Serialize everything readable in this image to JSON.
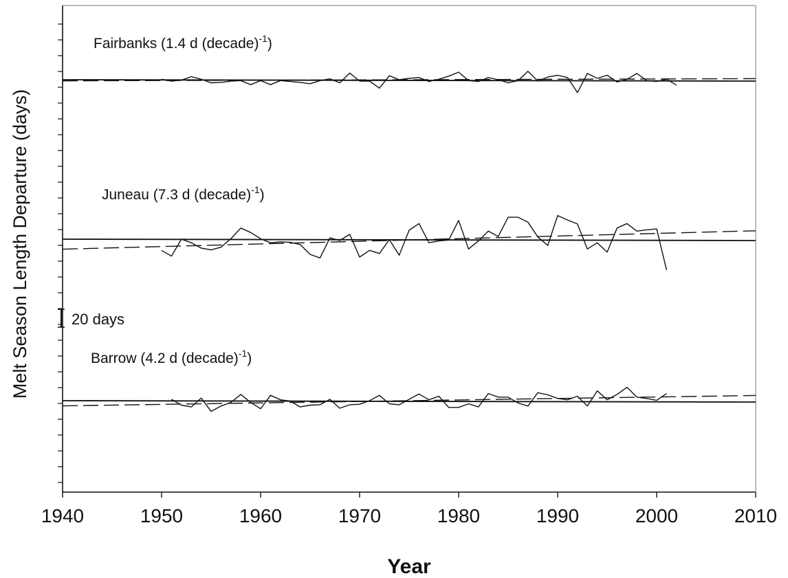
{
  "chart_data": {
    "type": "line",
    "xlabel": "Year",
    "ylabel": "Melt Season Length Departure (days)",
    "xlim": [
      1940,
      2010
    ],
    "x_ticks": [
      "1940",
      "1950",
      "1960",
      "1970",
      "1980",
      "1990",
      "2000",
      "2010"
    ],
    "scale_bar": {
      "label": "20 days",
      "days": 20
    },
    "series": [
      {
        "name": "Fairbanks",
        "label_main": "Fairbanks (1.4 d (decade)",
        "label_exp": "-1",
        "label_close": ")",
        "x_start": 1950,
        "values": [
          0.5,
          -1.5,
          -0.5,
          3.5,
          0.5,
          -3.5,
          -3,
          -1.5,
          -1,
          -5.5,
          -1,
          -5.5,
          -1,
          -2,
          -3,
          -4.5,
          -1,
          1,
          -3.5,
          7.5,
          -1.5,
          -1.5,
          -9.5,
          4.5,
          0,
          1.5,
          2.5,
          -2,
          0.5,
          4,
          8.5,
          -1,
          -2,
          2.5,
          0,
          -3.5,
          -1,
          9.5,
          -1.5,
          3,
          5,
          2.5,
          -14.5,
          7,
          1.5,
          5,
          -2.5,
          0.5,
          7,
          -1,
          -2,
          0.5,
          -6
        ],
        "trend": [
          -1.25,
          1.19
        ]
      },
      {
        "name": "Juneau",
        "label_main": "Juneau (7.3 d (decade)",
        "label_exp": "-1",
        "label_close": ")",
        "x_start": 1950,
        "values": [
          -12.5,
          -19,
          0,
          -4,
          -10,
          -12,
          -9,
          0.5,
          12.5,
          7.5,
          0.5,
          -4,
          -3,
          -3.5,
          -6,
          -17,
          -21,
          1.5,
          -1.5,
          5.5,
          -20,
          -12.5,
          -16,
          -0.5,
          -18,
          10,
          17.5,
          -4,
          -2,
          -1,
          21,
          -11,
          -2,
          9,
          3,
          24.5,
          24.5,
          19,
          2.5,
          -7,
          26.5,
          21.5,
          17,
          -11,
          -4,
          -14.5,
          12.5,
          17.5,
          9,
          10.5,
          11.5,
          -34.5
        ],
        "trend": [
          -11.2,
          9.4
        ]
      },
      {
        "name": "Barrow",
        "label_main": "Barrow (4.2 d (decade)",
        "label_exp": "-1",
        "label_close": ")",
        "x_start": 1951,
        "values": [
          1.5,
          -5,
          -7,
          3,
          -12,
          -6,
          -2,
          7,
          -2,
          -9,
          6,
          1,
          -0.5,
          -7,
          -5,
          -4.5,
          1.5,
          -8.5,
          -4.5,
          -4,
          0,
          6,
          -3.5,
          -4.5,
          1.5,
          7.5,
          1,
          5,
          -7.5,
          -7.5,
          -3.5,
          -7,
          8,
          4,
          4,
          -2.5,
          -6,
          9,
          6.5,
          2.5,
          1,
          5,
          -6,
          11,
          1,
          7,
          15,
          4,
          2.5,
          0.5,
          8
        ],
        "trend": [
          -5.8,
          5.8
        ]
      }
    ]
  }
}
